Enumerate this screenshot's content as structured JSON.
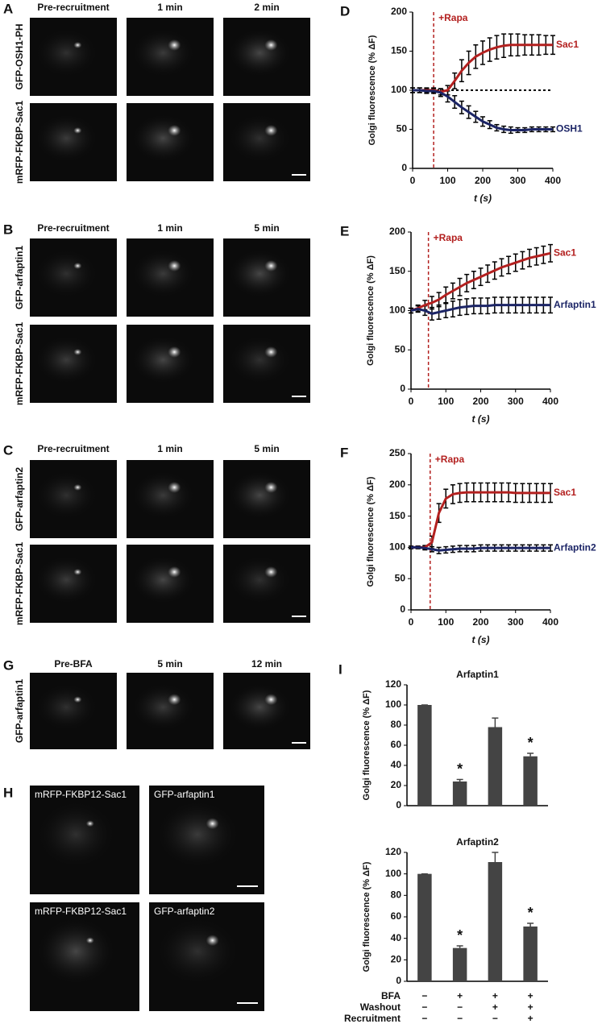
{
  "panels": {
    "A": {
      "letter": "A",
      "columns": [
        "Pre-recruitment",
        "1 min",
        "2 min"
      ],
      "rows": [
        "GFP-OSH1-PH",
        "mRFP-FKBP-Sac1"
      ]
    },
    "B": {
      "letter": "B",
      "columns": [
        "Pre-recruitment",
        "1 min",
        "5 min"
      ],
      "rows": [
        "GFP-arfaptin1",
        "mRFP-FKBP-Sac1"
      ]
    },
    "C": {
      "letter": "C",
      "columns": [
        "Pre-recruitment",
        "1 min",
        "5 min"
      ],
      "rows": [
        "GFP-arfaptin2",
        "mRFP-FKBP-Sac1"
      ]
    },
    "G": {
      "letter": "G",
      "columns": [
        "Pre-BFA",
        "5 min",
        "12 min"
      ],
      "rows": [
        "GFP-arfaptin1"
      ]
    },
    "H": {
      "letter": "H",
      "images": [
        "mRFP-FKBP12-Sac1",
        "GFP-arfaptin1",
        "mRFP-FKBP12-Sac1",
        "GFP-arfaptin2"
      ]
    },
    "I": {
      "letter": "I",
      "conditions": {
        "labels": [
          "BFA",
          "Washout",
          "Recruitment"
        ],
        "rows": [
          [
            "−",
            "+",
            "+",
            "+"
          ],
          [
            "−",
            "−",
            "+",
            "+"
          ],
          [
            "−",
            "−",
            "−",
            "+"
          ]
        ]
      }
    }
  },
  "chart_data": [
    {
      "type": "line",
      "label": "D",
      "ylabel": "Golgi fluorescence (% ΔF)",
      "xlabel": "t (s)",
      "x": [
        0,
        20,
        40,
        60,
        80,
        100,
        120,
        140,
        160,
        180,
        200,
        220,
        240,
        260,
        280,
        300,
        320,
        340,
        360,
        380,
        400
      ],
      "series": [
        {
          "name": "Sac1",
          "color": "#b3201f",
          "values": [
            100,
            100,
            100,
            100,
            98,
            100,
            112,
            125,
            135,
            143,
            148,
            152,
            155,
            157,
            158,
            158,
            158,
            158,
            158,
            158,
            158
          ],
          "errors": [
            3,
            3,
            3,
            3,
            4,
            6,
            10,
            14,
            15,
            15,
            15,
            15,
            15,
            15,
            14,
            14,
            13,
            13,
            13,
            12,
            12
          ]
        },
        {
          "name": "OSH1",
          "color": "#1c2566",
          "values": [
            100,
            100,
            99,
            99,
            97,
            92,
            85,
            78,
            72,
            66,
            60,
            56,
            52,
            50,
            49,
            49,
            49,
            50,
            50,
            50,
            50
          ],
          "errors": [
            3,
            3,
            3,
            3,
            5,
            7,
            8,
            8,
            8,
            7,
            6,
            5,
            4,
            4,
            4,
            3,
            3,
            3,
            3,
            3,
            3
          ]
        }
      ],
      "xlim": [
        0,
        400
      ],
      "xticks": [
        0,
        100,
        200,
        300,
        400
      ],
      "ylim": [
        0,
        200
      ],
      "yticks": [
        0,
        50,
        100,
        150,
        200
      ],
      "annotation": {
        "text": "+Rapa",
        "x": 60
      },
      "hline": 100
    },
    {
      "type": "line",
      "label": "E",
      "ylabel": "Golgi fluorescence (% ΔF)",
      "xlabel": "t (s)",
      "x": [
        0,
        20,
        40,
        60,
        80,
        100,
        120,
        140,
        160,
        180,
        200,
        220,
        240,
        260,
        280,
        300,
        320,
        340,
        360,
        380,
        400
      ],
      "series": [
        {
          "name": "Sac1",
          "color": "#b3201f",
          "values": [
            100,
            103,
            107,
            110,
            114,
            120,
            125,
            130,
            135,
            139,
            143,
            147,
            151,
            155,
            158,
            161,
            164,
            167,
            169,
            171,
            173
          ],
          "errors": [
            3,
            4,
            6,
            8,
            9,
            10,
            10,
            11,
            11,
            11,
            11,
            11,
            11,
            11,
            11,
            11,
            11,
            11,
            11,
            11,
            11
          ]
        },
        {
          "name": "Arfaptin1",
          "color": "#1c2566",
          "values": [
            100,
            102,
            100,
            96,
            98,
            100,
            102,
            104,
            105,
            106,
            106,
            106,
            107,
            107,
            107,
            107,
            107,
            107,
            107,
            107,
            107
          ],
          "errors": [
            3,
            4,
            6,
            8,
            9,
            9,
            10,
            10,
            10,
            10,
            10,
            10,
            10,
            10,
            10,
            10,
            10,
            10,
            10,
            10,
            10
          ]
        }
      ],
      "xlim": [
        0,
        400
      ],
      "xticks": [
        0,
        100,
        200,
        300,
        400
      ],
      "ylim": [
        0,
        200
      ],
      "yticks": [
        0,
        50,
        100,
        150,
        200
      ],
      "annotation": {
        "text": "+Rapa",
        "x": 50
      }
    },
    {
      "type": "line",
      "label": "F",
      "ylabel": "Golgi fluorescence (% ΔF)",
      "xlabel": "t (s)",
      "x": [
        0,
        20,
        40,
        60,
        80,
        100,
        120,
        140,
        160,
        180,
        200,
        220,
        240,
        260,
        280,
        300,
        320,
        340,
        360,
        380,
        400
      ],
      "series": [
        {
          "name": "Sac1",
          "color": "#b3201f",
          "values": [
            100,
            100,
            100,
            108,
            155,
            178,
            185,
            187,
            188,
            188,
            188,
            188,
            188,
            188,
            188,
            187,
            187,
            187,
            187,
            187,
            187
          ],
          "errors": [
            2,
            2,
            3,
            10,
            15,
            15,
            15,
            15,
            15,
            15,
            15,
            15,
            15,
            15,
            15,
            15,
            15,
            15,
            15,
            15,
            15
          ]
        },
        {
          "name": "Arfaptin2",
          "color": "#1c2566",
          "values": [
            100,
            100,
            99,
            97,
            95,
            96,
            97,
            98,
            98,
            98,
            99,
            99,
            99,
            99,
            99,
            99,
            99,
            99,
            99,
            99,
            99
          ],
          "errors": [
            2,
            2,
            3,
            4,
            5,
            5,
            5,
            5,
            5,
            5,
            5,
            5,
            5,
            5,
            5,
            5,
            5,
            5,
            5,
            5,
            5
          ]
        }
      ],
      "xlim": [
        0,
        400
      ],
      "xticks": [
        0,
        100,
        200,
        300,
        400
      ],
      "ylim": [
        0,
        250
      ],
      "yticks": [
        0,
        50,
        100,
        150,
        200,
        250
      ],
      "annotation": {
        "text": "+Rapa",
        "x": 55
      }
    },
    {
      "type": "bar",
      "title": "Arfaptin1",
      "ylabel": "Golgi fluorescence (% ΔF)",
      "color": "#444444",
      "values": [
        100,
        24,
        78,
        49
      ],
      "errors": [
        0,
        2,
        9,
        3
      ],
      "marks": [
        null,
        "*",
        null,
        "*"
      ],
      "ylim": [
        0,
        120
      ],
      "yticks": [
        0,
        20,
        40,
        60,
        80,
        100,
        120
      ]
    },
    {
      "type": "bar",
      "title": "Arfaptin2",
      "ylabel": "Golgi fluorescence (% ΔF)",
      "color": "#444444",
      "values": [
        100,
        31,
        111,
        51
      ],
      "errors": [
        0,
        2,
        9,
        3
      ],
      "marks": [
        null,
        "*",
        null,
        "*"
      ],
      "ylim": [
        0,
        120
      ],
      "yticks": [
        0,
        20,
        40,
        60,
        80,
        100,
        120
      ]
    }
  ]
}
